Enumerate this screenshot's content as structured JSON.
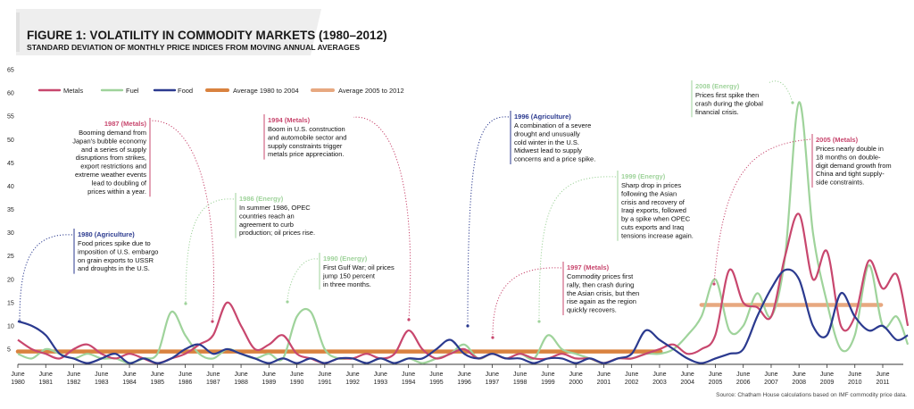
{
  "header": {
    "title": "FIGURE 1: VOLATILITY IN COMMODITY MARKETS (1980–2012)",
    "subtitle": "STANDARD DEVIATION OF MONTHLY PRICE INDICES FROM MOVING ANNUAL AVERAGES"
  },
  "source": "Source: Chatham House calculations based on IMF commodity price data.",
  "colors": {
    "metals": "#c8476e",
    "fuel": "#9fd39b",
    "food": "#2b3a8f",
    "avg_1980_2004": "#d9823f",
    "avg_2005_2012": "#e7a880",
    "axis": "#333333",
    "title_bg": "#eeeeee"
  },
  "chart_data": {
    "type": "line",
    "title": "FIGURE 1: VOLATILITY IN COMMODITY MARKETS (1980–2012)",
    "subtitle": "STANDARD DEVIATION OF MONTHLY PRICE INDICES FROM MOVING ANNUAL AVERAGES",
    "xlabel": "",
    "ylabel": "",
    "ylim": [
      0,
      65
    ],
    "yticks": [
      5,
      10,
      15,
      20,
      25,
      30,
      35,
      40,
      45,
      50,
      55,
      60,
      65
    ],
    "xlim": [
      1980.5,
      2012.4
    ],
    "x_tick_years": [
      1980,
      1981,
      1982,
      1983,
      1984,
      1985,
      1986,
      1987,
      1988,
      1989,
      1990,
      1991,
      1992,
      1993,
      1994,
      1995,
      1996,
      1997,
      1998,
      1999,
      2000,
      2001,
      2002,
      2003,
      2004,
      2005,
      2006,
      2007,
      2008,
      2009,
      2010,
      2011
    ],
    "x_tick_prefix": "June",
    "grid": false,
    "legend_position": "top-left",
    "series": [
      {
        "name": "Metals",
        "key": "metals",
        "x": [
          1980.5,
          1981.0,
          1981.5,
          1982.0,
          1982.5,
          1983.0,
          1983.5,
          1984.0,
          1984.5,
          1985.0,
          1985.5,
          1986.0,
          1986.5,
          1987.0,
          1987.5,
          1988.0,
          1988.5,
          1989.0,
          1989.5,
          1990.0,
          1990.5,
          1991.0,
          1991.5,
          1992.0,
          1992.5,
          1993.0,
          1993.5,
          1994.0,
          1994.5,
          1995.0,
          1995.5,
          1996.0,
          1996.5,
          1997.0,
          1997.5,
          1998.0,
          1998.5,
          1999.0,
          1999.5,
          2000.0,
          2000.5,
          2001.0,
          2001.5,
          2002.0,
          2002.5,
          2003.0,
          2003.5,
          2004.0,
          2004.5,
          2005.0,
          2005.5,
          2006.0,
          2006.5,
          2007.0,
          2007.5,
          2008.0,
          2008.5,
          2009.0,
          2009.5,
          2010.0,
          2010.5,
          2011.0,
          2011.5,
          2012.0,
          2012.4
        ],
        "y": [
          7,
          5,
          4,
          3,
          5,
          6,
          4,
          3,
          4,
          3,
          2,
          3,
          4,
          6,
          8,
          15,
          10,
          5,
          6,
          8,
          4,
          3,
          2,
          3,
          3,
          4,
          3,
          4,
          9,
          5,
          3,
          4,
          5,
          3,
          4,
          3,
          4,
          3,
          3,
          4,
          3,
          3,
          2,
          3,
          3,
          4,
          5,
          6,
          4,
          5,
          8,
          22,
          15,
          14,
          12,
          25,
          34,
          20,
          26,
          10,
          12,
          24,
          18,
          21,
          10
        ]
      },
      {
        "name": "Fuel",
        "key": "fuel",
        "x": [
          1980.5,
          1981.0,
          1981.5,
          1982.0,
          1982.5,
          1983.0,
          1983.5,
          1984.0,
          1984.5,
          1985.0,
          1985.5,
          1986.0,
          1986.5,
          1987.0,
          1987.5,
          1988.0,
          1988.5,
          1989.0,
          1989.5,
          1990.0,
          1990.5,
          1991.0,
          1991.5,
          1992.0,
          1992.5,
          1993.0,
          1993.5,
          1994.0,
          1994.5,
          1995.0,
          1995.5,
          1996.0,
          1996.5,
          1997.0,
          1997.5,
          1998.0,
          1998.5,
          1999.0,
          1999.5,
          2000.0,
          2000.5,
          2001.0,
          2001.5,
          2002.0,
          2002.5,
          2003.0,
          2003.5,
          2004.0,
          2004.5,
          2005.0,
          2005.5,
          2006.0,
          2006.5,
          2007.0,
          2007.5,
          2008.0,
          2008.5,
          2009.0,
          2009.5,
          2010.0,
          2010.5,
          2011.0,
          2011.5,
          2012.0,
          2012.4
        ],
        "y": [
          4,
          3,
          5,
          4,
          3,
          4,
          3,
          3,
          2,
          3,
          4,
          13,
          8,
          4,
          3,
          5,
          4,
          3,
          4,
          3,
          12,
          13,
          5,
          3,
          3,
          2,
          3,
          2,
          3,
          2,
          3,
          4,
          6,
          3,
          4,
          3,
          4,
          3,
          8,
          5,
          4,
          3,
          2,
          3,
          3,
          4,
          4,
          5,
          8,
          12,
          20,
          9,
          10,
          17,
          12,
          25,
          58,
          30,
          15,
          5,
          8,
          23,
          10,
          12,
          6
        ]
      },
      {
        "name": "Food",
        "key": "food",
        "x": [
          1980.5,
          1981.0,
          1981.5,
          1982.0,
          1982.5,
          1983.0,
          1983.5,
          1984.0,
          1984.5,
          1985.0,
          1985.5,
          1986.0,
          1986.5,
          1987.0,
          1987.5,
          1988.0,
          1988.5,
          1989.0,
          1989.5,
          1990.0,
          1990.5,
          1991.0,
          1991.5,
          1992.0,
          1992.5,
          1993.0,
          1993.5,
          1994.0,
          1994.5,
          1995.0,
          1995.5,
          1996.0,
          1996.5,
          1997.0,
          1997.5,
          1998.0,
          1998.5,
          1999.0,
          1999.5,
          2000.0,
          2000.5,
          2001.0,
          2001.5,
          2002.0,
          2002.5,
          2003.0,
          2003.5,
          2004.0,
          2004.5,
          2005.0,
          2005.5,
          2006.0,
          2006.5,
          2007.0,
          2007.5,
          2008.0,
          2008.5,
          2009.0,
          2009.5,
          2010.0,
          2010.5,
          2011.0,
          2011.5,
          2012.0,
          2012.4
        ],
        "y": [
          11,
          10,
          8,
          4,
          3,
          2,
          3,
          4,
          2,
          3,
          2,
          3,
          5,
          6,
          4,
          5,
          4,
          3,
          2,
          3,
          2,
          3,
          2,
          3,
          3,
          2,
          3,
          2,
          3,
          3,
          5,
          7,
          4,
          3,
          4,
          3,
          3,
          2,
          3,
          3,
          2,
          3,
          2,
          3,
          4,
          9,
          7,
          5,
          3,
          2,
          3,
          4,
          5,
          12,
          18,
          22,
          20,
          10,
          8,
          17,
          12,
          9,
          10,
          7,
          8
        ]
      }
    ],
    "averages": [
      {
        "name": "Average 1980 to 2004",
        "key": "avg_1980_2004",
        "value": 4.5,
        "from": 1980.5,
        "to": 2004.5
      },
      {
        "name": "Average 2005 to 2012",
        "key": "avg_2005_2012",
        "value": 14.5,
        "from": 2005.0,
        "to": 2012.4
      }
    ],
    "annotations": [
      {
        "key": "a1980",
        "series": "food",
        "heading": "1980 (Agriculture)",
        "lines": [
          "Food prices spike due to",
          "imposition of U.S. embargo",
          "on grain exports to USSR",
          "and droughts in the U.S."
        ]
      },
      {
        "key": "a1987",
        "series": "metals",
        "heading": "1987 (Metals)",
        "lines": [
          "Booming demand from",
          "Japan's bubble economy",
          "and a series of supply",
          "disruptions from strikes,",
          "export restrictions and",
          "extreme weather events",
          "lead to doubling of",
          "prices within a year."
        ]
      },
      {
        "key": "a1986",
        "series": "fuel",
        "heading": "1986 (Energy)",
        "lines": [
          "In summer 1986, OPEC",
          "countries reach an",
          "agreement to curb",
          "production; oil prices rise."
        ]
      },
      {
        "key": "a1990",
        "series": "fuel",
        "heading": "1990 (Energy)",
        "lines": [
          "First Gulf War; oil prices",
          "jump 150 percent",
          "in three months."
        ]
      },
      {
        "key": "a1994",
        "series": "metals",
        "heading": "1994 (Metals)",
        "lines": [
          "Boom in U.S. construction",
          "and automobile sector and",
          "supply constraints trigger",
          "metals price appreciation."
        ]
      },
      {
        "key": "a1996",
        "series": "food",
        "heading": "1996 (Agriculture)",
        "lines": [
          "A combination of a severe",
          "drought and unusually",
          "cold winter in the U.S.",
          "Midwest lead to supply",
          "concerns and a price spike."
        ]
      },
      {
        "key": "a1999",
        "series": "fuel",
        "heading": "1999 (Energy)",
        "lines": [
          "Sharp drop in prices",
          "following the Asian",
          "crisis and recovery of",
          "Iraqi exports, followed",
          "by a spike when OPEC",
          "cuts exports and Iraq",
          "tensions increase again."
        ]
      },
      {
        "key": "a1997",
        "series": "metals",
        "heading": "1997 (Metals)",
        "lines": [
          "Commodity prices first",
          "rally, then crash during",
          "the Asian crisis, but then",
          "rise again as the region",
          "quickly recovers."
        ]
      },
      {
        "key": "a2008",
        "series": "fuel",
        "heading": "2008 (Energy)",
        "lines": [
          "Prices first spike then",
          "crash during the global",
          "financial crisis."
        ]
      },
      {
        "key": "a2005",
        "series": "metals",
        "heading": "2005 (Metals)",
        "lines": [
          "Prices nearly double in",
          "18 months on double-",
          "digit demand growth from",
          "China and tight supply-",
          "side constraints."
        ]
      }
    ]
  }
}
